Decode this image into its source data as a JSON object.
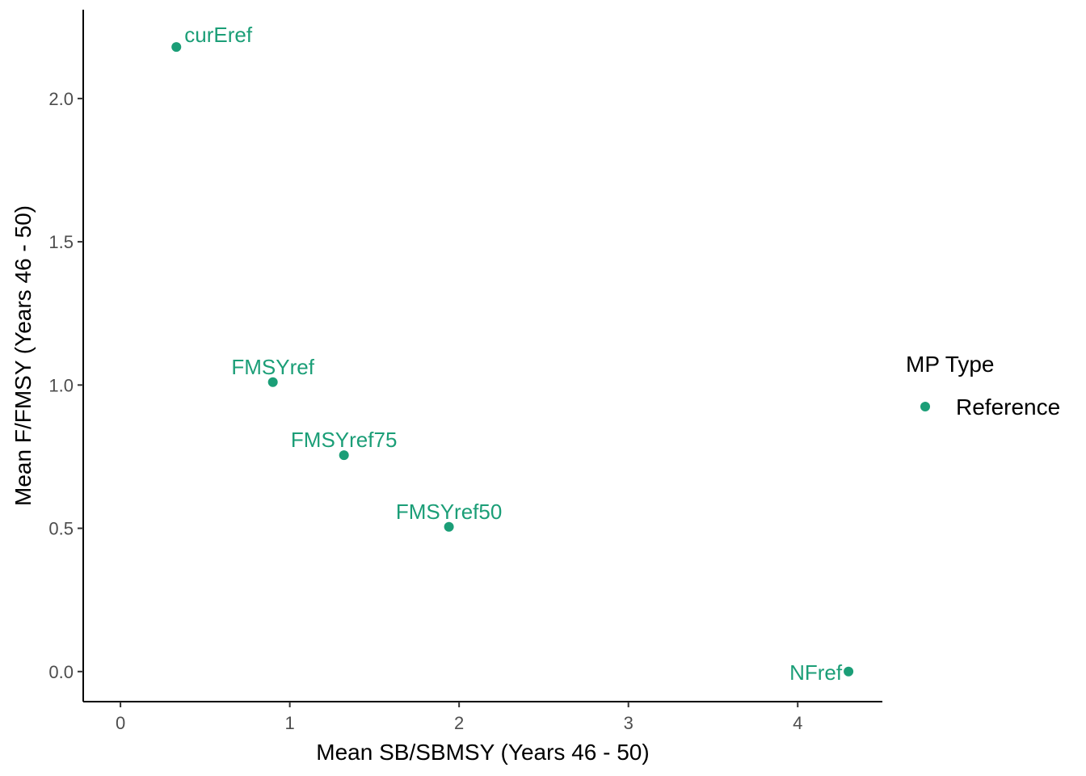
{
  "chart_data": {
    "type": "scatter",
    "title": "",
    "xlabel": "Mean SB/SBMSY (Years 46 - 50)",
    "ylabel": "Mean F/FMSY (Years 46 - 50)",
    "xlim": [
      -0.22,
      4.5
    ],
    "ylim": [
      -0.105,
      2.31
    ],
    "xticks": [
      0,
      1,
      2,
      3,
      4
    ],
    "xtick_labels": [
      "0",
      "1",
      "2",
      "3",
      "4"
    ],
    "yticks": [
      0.0,
      0.5,
      1.0,
      1.5,
      2.0
    ],
    "ytick_labels": [
      "0.0",
      "0.5",
      "1.0",
      "1.5",
      "2.0"
    ],
    "grid": false,
    "legend": {
      "title": "MP Type",
      "position": "right",
      "entries": [
        {
          "name": "Reference",
          "color": "#1b9e77"
        }
      ]
    },
    "series": [
      {
        "name": "Reference",
        "color": "#1b9e77",
        "points": [
          {
            "label": "curEref",
            "x": 0.33,
            "y": 2.18,
            "label_anchor": "right-above"
          },
          {
            "label": "FMSYref",
            "x": 0.9,
            "y": 1.01,
            "label_anchor": "above"
          },
          {
            "label": "FMSYref75",
            "x": 1.32,
            "y": 0.755,
            "label_anchor": "above"
          },
          {
            "label": "FMSYref50",
            "x": 1.94,
            "y": 0.505,
            "label_anchor": "above"
          },
          {
            "label": "NFref",
            "x": 4.3,
            "y": 0.0,
            "label_anchor": "left"
          }
        ]
      }
    ]
  }
}
